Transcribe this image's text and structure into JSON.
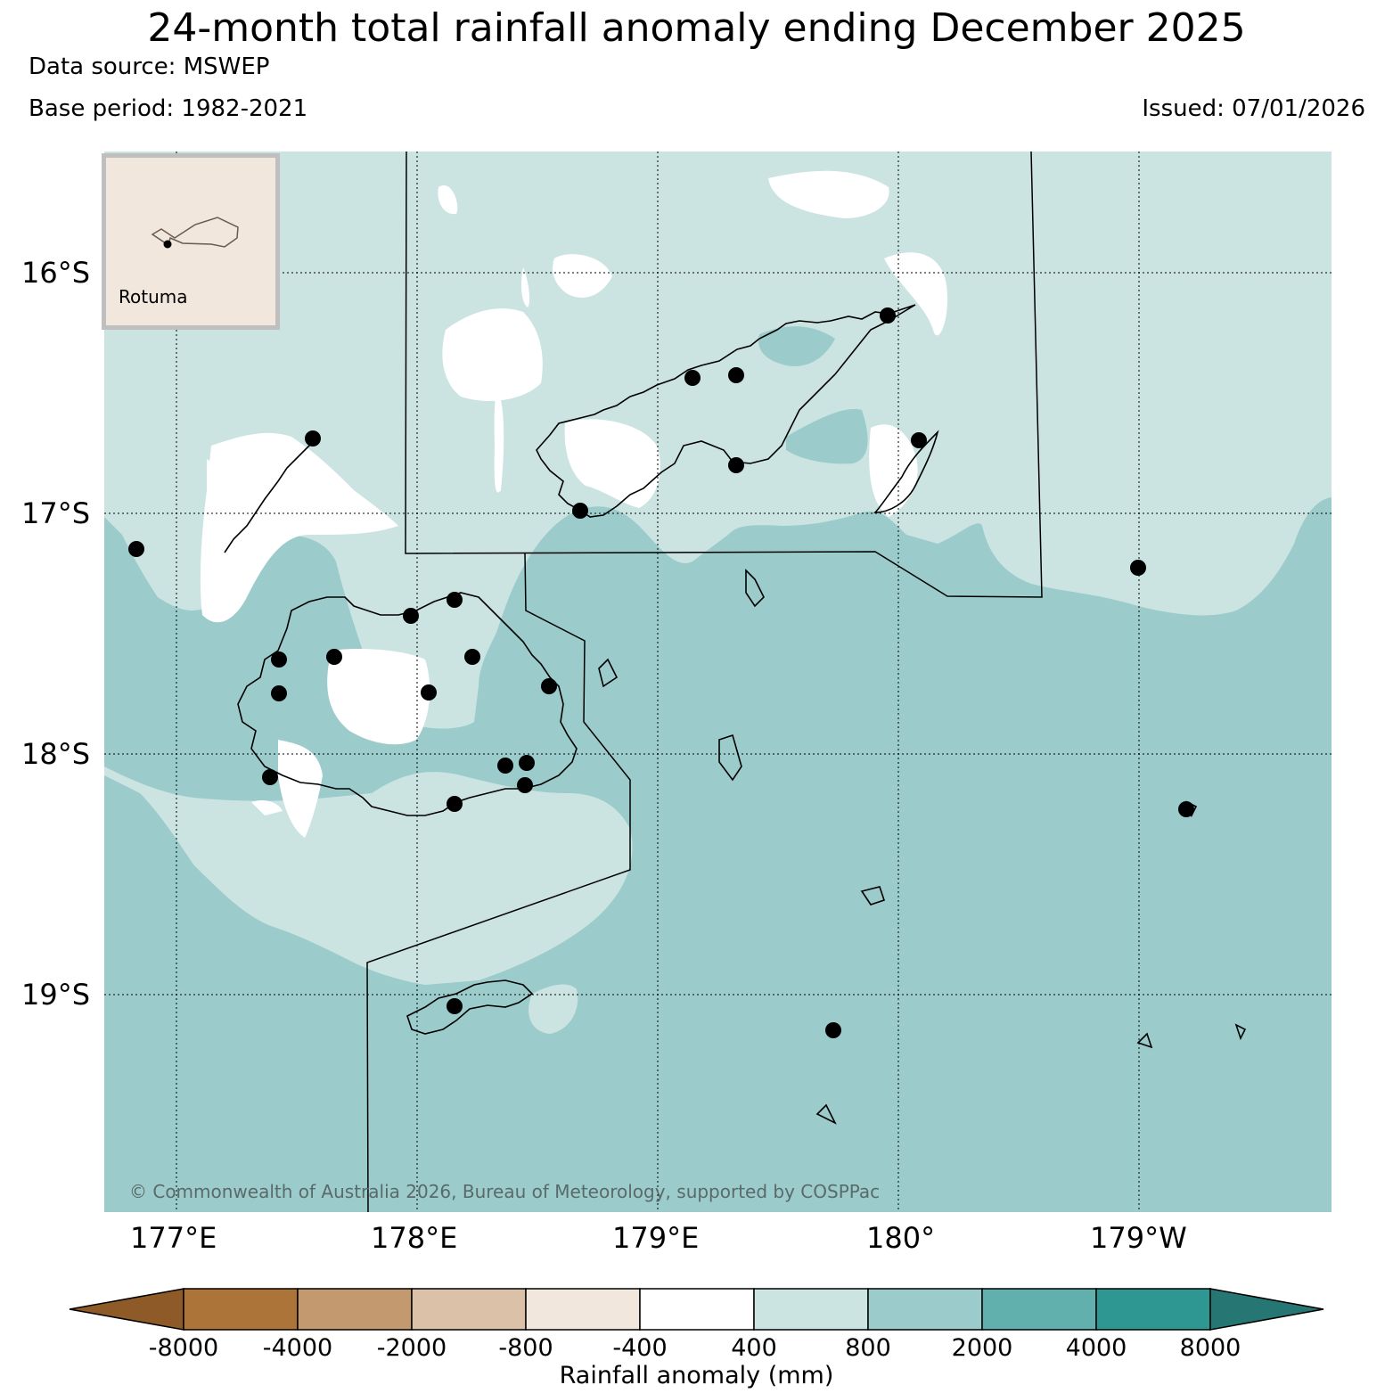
{
  "title": "24-month total rainfall anomaly ending December 2025",
  "data_source": "Data source: MSWEP",
  "base_period": "Base period: 1982-2021",
  "issued": "Issued: 07/01/2026",
  "copyright": "© Commonwealth of Australia 2026, Bureau of Meteorology, supported by COSPPac",
  "inset": {
    "label": "Rotuma"
  },
  "lat_labels": [
    "16°S",
    "17°S",
    "18°S",
    "19°S"
  ],
  "lon_labels": [
    "177°E",
    "178°E",
    "179°E",
    "180°",
    "179°W"
  ],
  "colorbar": {
    "label": "Rainfall anomaly (mm)",
    "ticks": [
      "-8000",
      "-4000",
      "-2000",
      "-800",
      "-400",
      "400",
      "800",
      "2000",
      "4000",
      "8000"
    ],
    "colors": [
      "#8e5a27",
      "#ad7439",
      "#c39a6f",
      "#dac1a8",
      "#f1e7dd",
      "#ffffff",
      "#cbe4e2",
      "#9ccbcb",
      "#62b0ae",
      "#2e9792",
      "#267674"
    ]
  },
  "colors": {
    "ocean_anomaly": "#9ccbcb",
    "light_anomaly": "#cbe4e2",
    "neutral": "#ffffff"
  }
}
